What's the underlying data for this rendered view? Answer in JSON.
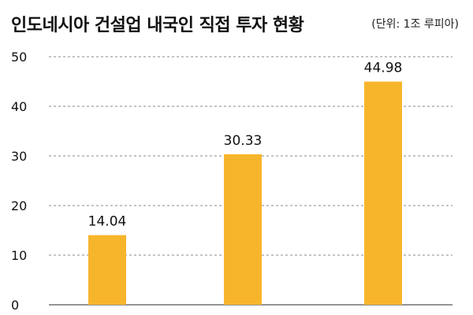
{
  "title": "인도네시아 건설업 내국인 직접 투자 현황",
  "unit_note": "(단위: 1조 루피아)",
  "colors": {
    "bar": "#F7B52C",
    "grid": "#888888",
    "axis": "#555555"
  },
  "chart_data": {
    "type": "bar",
    "title": "인도네시아 건설업 내국인 직접 투자 현황",
    "subtitle": "(단위: 1조 루피아)",
    "categories": [
      "",
      "",
      ""
    ],
    "values": [
      14.04,
      30.33,
      44.98
    ],
    "value_labels": [
      "14.04",
      "30.33",
      "44.98"
    ],
    "xlabel": "",
    "ylabel": "",
    "ylim": [
      0,
      50
    ],
    "yticks": [
      0,
      10,
      20,
      30,
      40,
      50
    ],
    "grid": true,
    "legend": "none"
  }
}
